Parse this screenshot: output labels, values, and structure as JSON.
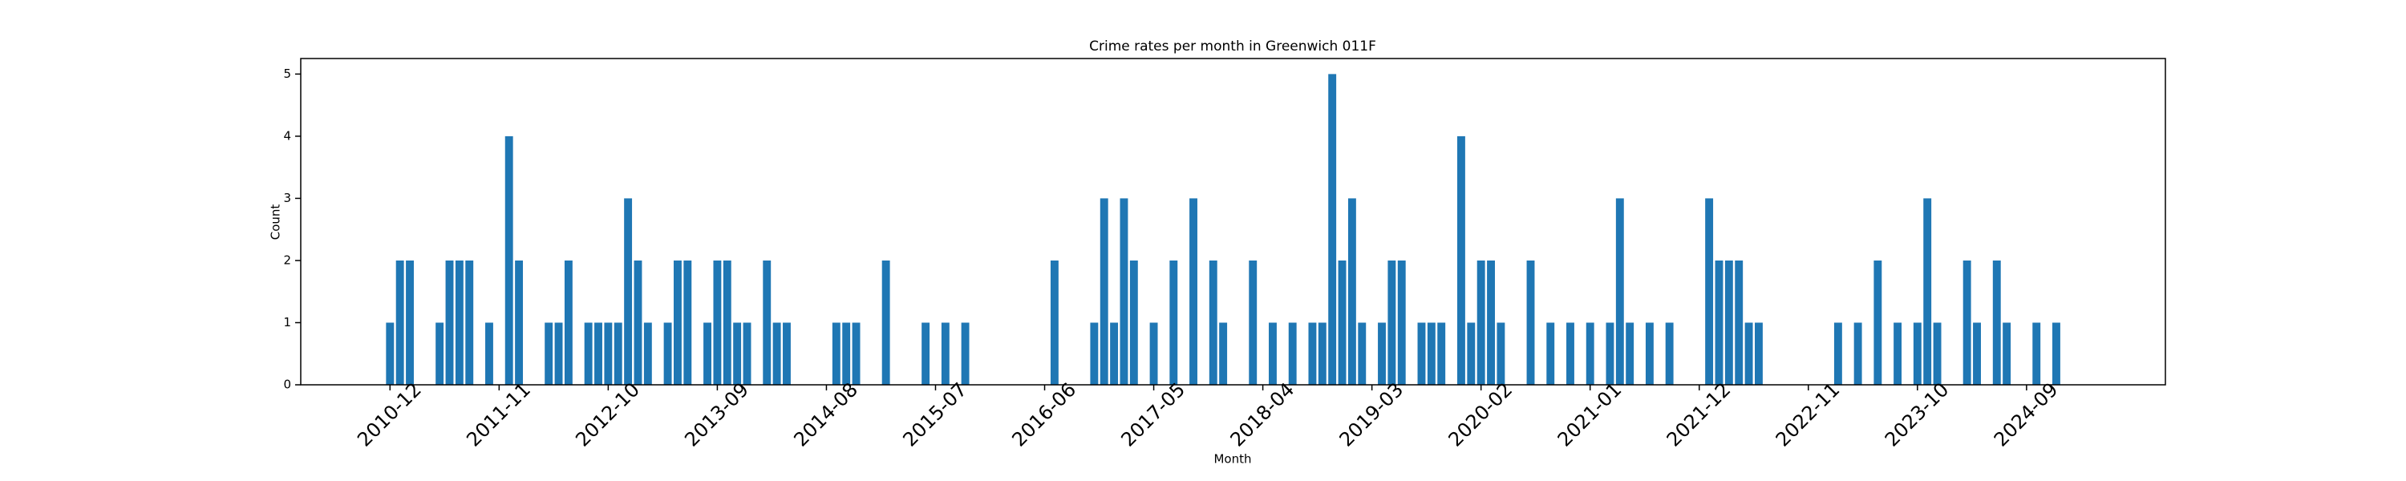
{
  "chart_data": {
    "type": "bar",
    "title": "Crime rates per month in Greenwich 011F",
    "x_label": "Month",
    "y_label": "Count",
    "color": "#1f77b4",
    "x": [
      "2010-12",
      "2011-01",
      "2011-02",
      "2011-05",
      "2011-06",
      "2011-07",
      "2011-08",
      "2011-10",
      "2011-12",
      "2012-01",
      "2012-04",
      "2012-05",
      "2012-06",
      "2012-08",
      "2012-09",
      "2012-10",
      "2012-11",
      "2012-12",
      "2013-01",
      "2013-02",
      "2013-04",
      "2013-05",
      "2013-06",
      "2013-08",
      "2013-09",
      "2013-10",
      "2013-11",
      "2013-12",
      "2014-02",
      "2014-03",
      "2014-04",
      "2014-09",
      "2014-10",
      "2014-11",
      "2015-02",
      "2015-06",
      "2015-08",
      "2015-10",
      "2016-07",
      "2016-11",
      "2016-12",
      "2017-01",
      "2017-02",
      "2017-03",
      "2017-05",
      "2017-07",
      "2017-09",
      "2017-11",
      "2017-12",
      "2018-03",
      "2018-05",
      "2018-07",
      "2018-09",
      "2018-10",
      "2018-11",
      "2018-12",
      "2019-01",
      "2019-02",
      "2019-04",
      "2019-05",
      "2019-06",
      "2019-08",
      "2019-09",
      "2019-10",
      "2019-12",
      "2020-01",
      "2020-02",
      "2020-03",
      "2020-04",
      "2020-07",
      "2020-09",
      "2020-11",
      "2021-01",
      "2021-03",
      "2021-04",
      "2021-05",
      "2021-07",
      "2021-09",
      "2022-01",
      "2022-02",
      "2022-03",
      "2022-04",
      "2022-05",
      "2022-06",
      "2023-02",
      "2023-04",
      "2023-06",
      "2023-08",
      "2023-10",
      "2023-11",
      "2023-12",
      "2024-03",
      "2024-04",
      "2024-06",
      "2024-07",
      "2024-10",
      "2024-12"
    ],
    "values": [
      1,
      2,
      2,
      1,
      2,
      2,
      2,
      1,
      4,
      2,
      1,
      1,
      2,
      1,
      1,
      1,
      1,
      3,
      2,
      1,
      1,
      2,
      2,
      1,
      2,
      2,
      1,
      1,
      2,
      1,
      1,
      1,
      1,
      1,
      2,
      1,
      1,
      1,
      2,
      1,
      3,
      1,
      3,
      2,
      1,
      2,
      3,
      2,
      1,
      2,
      1,
      1,
      1,
      1,
      5,
      2,
      3,
      1,
      1,
      2,
      2,
      1,
      1,
      1,
      4,
      1,
      2,
      2,
      1,
      2,
      1,
      1,
      1,
      1,
      3,
      1,
      1,
      1,
      3,
      2,
      2,
      2,
      1,
      1,
      1,
      1,
      2,
      1,
      1,
      3,
      1,
      2,
      1,
      2,
      1,
      1,
      1
    ],
    "xlim": [
      "2010-03",
      "2025-11"
    ],
    "xticks": [
      "2010-12",
      "2011-11",
      "2012-10",
      "2013-09",
      "2014-08",
      "2015-07",
      "2016-06",
      "2017-05",
      "2018-04",
      "2019-03",
      "2020-02",
      "2021-01",
      "2021-12",
      "2022-11",
      "2023-10",
      "2024-09"
    ],
    "ylim": [
      0,
      5.25
    ],
    "yticks": [
      0,
      1,
      2,
      3,
      4,
      5
    ]
  }
}
